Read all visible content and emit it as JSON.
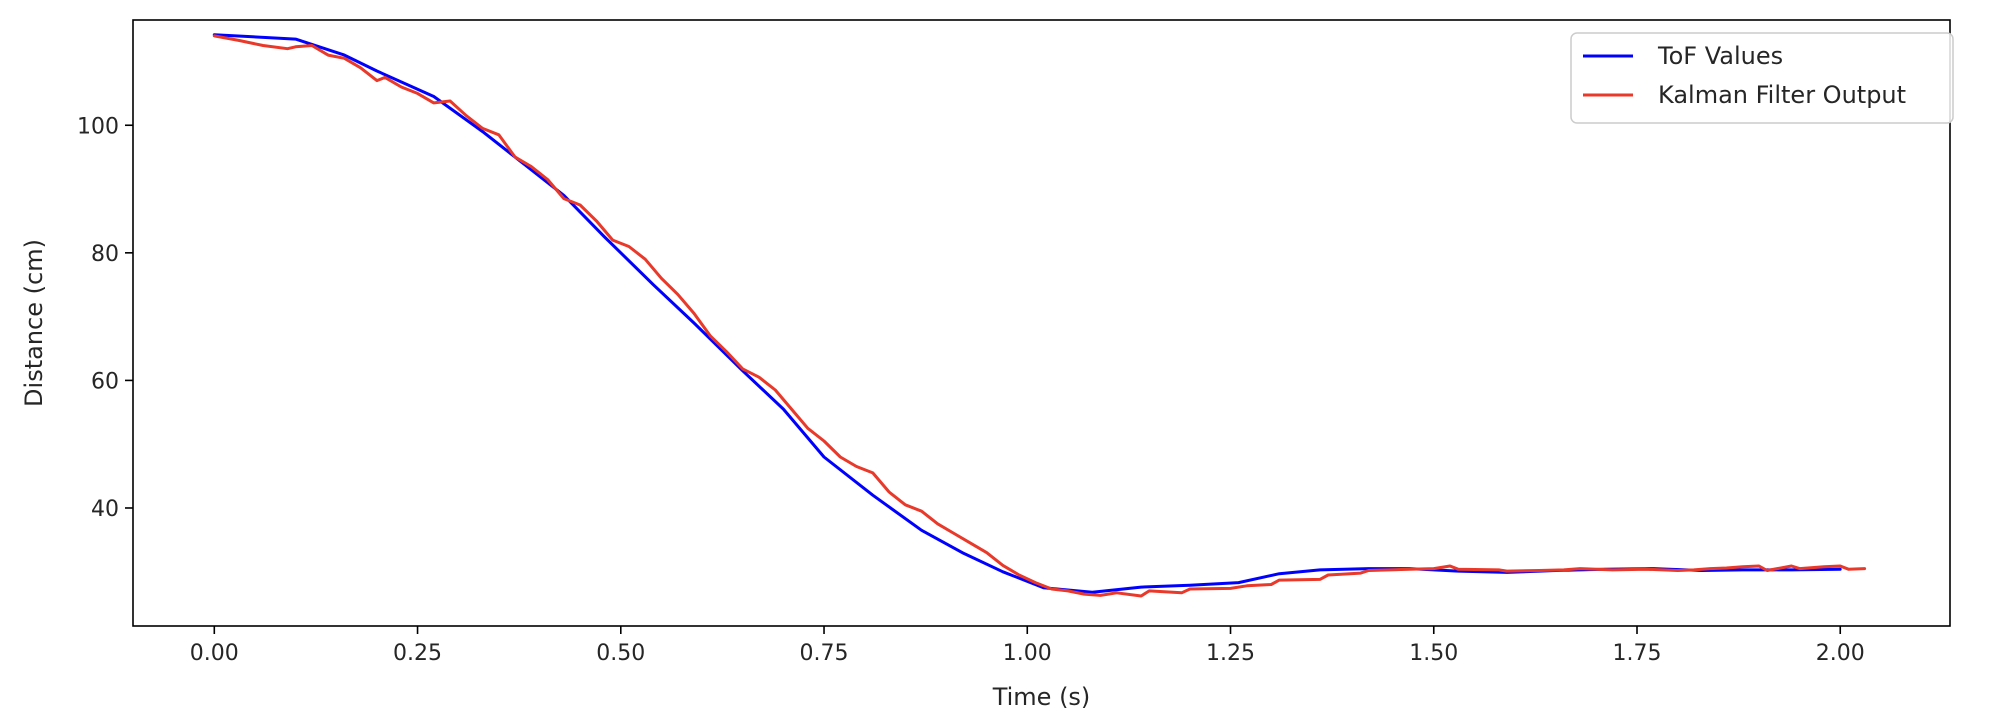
{
  "chart_data": {
    "type": "line",
    "title": "",
    "xlabel": "Time (s)",
    "ylabel": "Distance (cm)",
    "xlim": [
      -0.1,
      2.135
    ],
    "ylim": [
      21.5,
      116.5
    ],
    "xticks": [
      0.0,
      0.25,
      0.5,
      0.75,
      1.0,
      1.25,
      1.5,
      1.75,
      2.0
    ],
    "xtick_labels": [
      "0.00",
      "0.25",
      "0.50",
      "0.75",
      "1.00",
      "1.25",
      "1.50",
      "1.75",
      "2.00"
    ],
    "yticks": [
      40,
      60,
      80,
      100
    ],
    "ytick_labels": [
      "40",
      "60",
      "80",
      "100"
    ],
    "grid": false,
    "legend_position": "top-right",
    "series": [
      {
        "name": "ToF Values",
        "color": "#0000ff",
        "x": [
          0.0,
          0.1,
          0.16,
          0.2,
          0.27,
          0.33,
          0.38,
          0.43,
          0.48,
          0.54,
          0.59,
          0.65,
          0.7,
          0.75,
          0.81,
          0.87,
          0.92,
          0.97,
          1.02,
          1.08,
          1.14,
          1.2,
          1.26,
          1.31,
          1.36,
          1.42,
          1.47,
          1.53,
          1.59,
          1.65,
          1.71,
          1.77,
          1.83,
          1.88,
          1.94,
          2.0
        ],
        "y": [
          114.2,
          113.5,
          111.0,
          108.5,
          104.5,
          99.0,
          94.0,
          89.0,
          82.5,
          75.0,
          69.0,
          61.5,
          55.5,
          48.0,
          42.0,
          36.5,
          33.0,
          30.0,
          27.5,
          26.8,
          27.6,
          27.9,
          28.3,
          29.7,
          30.3,
          30.5,
          30.5,
          30.1,
          29.9,
          30.2,
          30.4,
          30.5,
          30.2,
          30.3,
          30.3,
          30.4
        ]
      },
      {
        "name": "Kalman Filter Output",
        "color": "#e8392a",
        "x": [
          0.0,
          0.03,
          0.06,
          0.09,
          0.1,
          0.12,
          0.14,
          0.16,
          0.18,
          0.2,
          0.21,
          0.23,
          0.25,
          0.27,
          0.29,
          0.31,
          0.33,
          0.35,
          0.37,
          0.39,
          0.41,
          0.43,
          0.45,
          0.47,
          0.49,
          0.51,
          0.53,
          0.55,
          0.57,
          0.59,
          0.61,
          0.63,
          0.65,
          0.67,
          0.69,
          0.71,
          0.73,
          0.75,
          0.77,
          0.79,
          0.81,
          0.83,
          0.85,
          0.87,
          0.89,
          0.91,
          0.93,
          0.95,
          0.97,
          0.99,
          1.01,
          1.03,
          1.05,
          1.07,
          1.09,
          1.11,
          1.14,
          1.15,
          1.19,
          1.2,
          1.25,
          1.27,
          1.3,
          1.31,
          1.36,
          1.37,
          1.41,
          1.42,
          1.47,
          1.5,
          1.52,
          1.53,
          1.58,
          1.59,
          1.63,
          1.66,
          1.68,
          1.72,
          1.76,
          1.8,
          1.82,
          1.84,
          1.86,
          1.88,
          1.9,
          1.91,
          1.94,
          1.95,
          1.98,
          2.0,
          2.01,
          2.03
        ],
        "y": [
          114.0,
          113.3,
          112.5,
          112.0,
          112.3,
          112.5,
          111.0,
          110.5,
          109.0,
          107.0,
          107.5,
          106.0,
          105.0,
          103.5,
          103.8,
          101.5,
          99.5,
          98.5,
          95.0,
          93.5,
          91.5,
          88.5,
          87.5,
          85.0,
          82.0,
          81.0,
          79.0,
          76.0,
          73.5,
          70.5,
          67.0,
          64.5,
          61.8,
          60.5,
          58.5,
          55.5,
          52.5,
          50.5,
          48.0,
          46.5,
          45.5,
          42.5,
          40.5,
          39.5,
          37.5,
          36.0,
          34.5,
          33.0,
          31.0,
          29.5,
          28.3,
          27.3,
          27.0,
          26.5,
          26.3,
          26.7,
          26.2,
          27.0,
          26.7,
          27.3,
          27.4,
          27.8,
          28.0,
          28.7,
          28.8,
          29.5,
          29.8,
          30.2,
          30.4,
          30.5,
          30.9,
          30.4,
          30.3,
          30.1,
          30.2,
          30.3,
          30.5,
          30.3,
          30.4,
          30.2,
          30.3,
          30.5,
          30.6,
          30.8,
          30.9,
          30.2,
          30.9,
          30.5,
          30.8,
          30.9,
          30.4,
          30.5
        ]
      }
    ]
  }
}
